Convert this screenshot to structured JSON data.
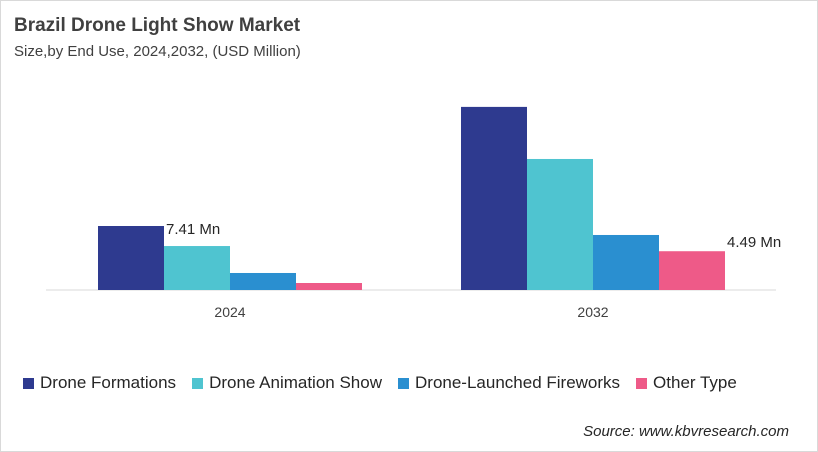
{
  "chart_data": {
    "type": "bar",
    "title": "Brazil Drone Light Show Market",
    "subtitle": "Size,by End Use, 2024,2032, (USD Million)",
    "categories": [
      "2024",
      "2032"
    ],
    "series": [
      {
        "name": "Drone Formations",
        "color": "#2E3A8F",
        "values": [
          7.41,
          21.2
        ]
      },
      {
        "name": "Drone Animation Show",
        "color": "#4FC4D0",
        "values": [
          5.09,
          15.17
        ]
      },
      {
        "name": "Drone-Launched Fireworks",
        "color": "#2A8FD0",
        "values": [
          1.97,
          6.37
        ]
      },
      {
        "name": "Other Type",
        "color": "#EE5A88",
        "values": [
          0.81,
          4.49
        ]
      }
    ],
    "data_labels": [
      {
        "series": 0,
        "category": 0,
        "text": "7.41 Mn"
      },
      {
        "series": 3,
        "category": 1,
        "text": "4.49 Mn"
      }
    ],
    "grid": false,
    "legend_position": "bottom",
    "xlabel": "",
    "ylabel": ""
  },
  "source": "Source: www.kbvresearch.com"
}
